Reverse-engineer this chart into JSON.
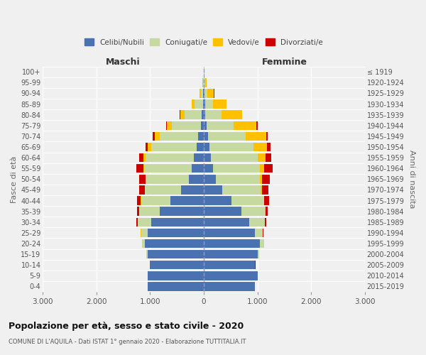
{
  "age_groups": [
    "0-4",
    "5-9",
    "10-14",
    "15-19",
    "20-24",
    "25-29",
    "30-34",
    "35-39",
    "40-44",
    "45-49",
    "50-54",
    "55-59",
    "60-64",
    "65-69",
    "70-74",
    "75-79",
    "80-84",
    "85-89",
    "90-94",
    "95-99",
    "100+"
  ],
  "birth_years": [
    "2015-2019",
    "2010-2014",
    "2005-2009",
    "2000-2004",
    "1995-1999",
    "1990-1994",
    "1985-1989",
    "1980-1984",
    "1975-1979",
    "1970-1974",
    "1965-1969",
    "1960-1964",
    "1955-1959",
    "1950-1954",
    "1945-1949",
    "1940-1944",
    "1935-1939",
    "1930-1934",
    "1925-1929",
    "1920-1924",
    "≤ 1919"
  ],
  "males": {
    "celibi": [
      1050,
      1050,
      1000,
      1050,
      1100,
      1050,
      980,
      820,
      620,
      420,
      280,
      230,
      180,
      130,
      100,
      60,
      40,
      20,
      10,
      5,
      2
    ],
    "coniugati": [
      2,
      2,
      5,
      20,
      50,
      120,
      250,
      380,
      550,
      680,
      800,
      880,
      900,
      850,
      720,
      530,
      320,
      150,
      50,
      15,
      2
    ],
    "vedovi": [
      0,
      0,
      0,
      1,
      2,
      2,
      2,
      2,
      3,
      5,
      10,
      20,
      40,
      60,
      100,
      100,
      80,
      50,
      20,
      5,
      1
    ],
    "divorziati": [
      0,
      0,
      1,
      2,
      5,
      10,
      20,
      40,
      70,
      100,
      120,
      130,
      90,
      50,
      30,
      15,
      8,
      5,
      3,
      2,
      0
    ]
  },
  "females": {
    "nubili": [
      950,
      1000,
      950,
      1000,
      1050,
      950,
      850,
      700,
      520,
      340,
      220,
      170,
      130,
      100,
      80,
      50,
      30,
      20,
      10,
      5,
      2
    ],
    "coniugate": [
      2,
      3,
      8,
      25,
      70,
      150,
      290,
      440,
      600,
      720,
      820,
      870,
      870,
      820,
      700,
      500,
      300,
      150,
      60,
      20,
      3
    ],
    "vedove": [
      0,
      0,
      0,
      1,
      2,
      2,
      3,
      5,
      10,
      20,
      40,
      80,
      150,
      260,
      380,
      430,
      380,
      250,
      120,
      30,
      3
    ],
    "divorziate": [
      0,
      0,
      1,
      2,
      5,
      10,
      20,
      45,
      80,
      120,
      150,
      160,
      110,
      60,
      30,
      20,
      10,
      5,
      3,
      2,
      0
    ]
  },
  "colors": {
    "celibi_nubili": "#4a72b0",
    "coniugati": "#c5d9a0",
    "vedovi": "#ffc000",
    "divorziati": "#cc0000"
  },
  "title": "Popolazione per età, sesso e stato civile - 2020",
  "subtitle": "COMUNE DI L'AQUILA - Dati ISTAT 1° gennaio 2020 - Elaborazione TUTTITALIA.IT",
  "xlabel_left": "Maschi",
  "xlabel_right": "Femmine",
  "ylabel_left": "Fasce di età",
  "ylabel_right": "Anni di nascita",
  "xlim": 3000,
  "background_color": "#f0f0f0",
  "legend_labels": [
    "Celibi/Nubili",
    "Coniugati/e",
    "Vedovi/e",
    "Divorziati/e"
  ]
}
